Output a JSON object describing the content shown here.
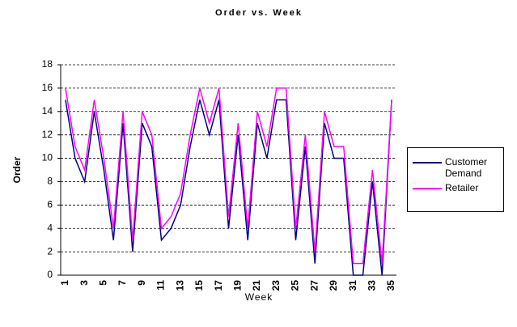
{
  "chart_data": {
    "type": "line",
    "title": "Order vs. Week",
    "xlabel": "Week",
    "ylabel": "Order",
    "categories": [
      "1",
      null,
      "3",
      null,
      "5",
      null,
      "7",
      null,
      "9",
      null,
      "11",
      null,
      "13",
      null,
      "15",
      null,
      "17",
      null,
      "19",
      null,
      "21",
      null,
      "23",
      null,
      "25",
      null,
      "27",
      null,
      "29",
      null,
      "31",
      null,
      "33",
      null,
      "35"
    ],
    "series": [
      {
        "name": "Customer Demand",
        "color": "#000080",
        "values": [
          15,
          10,
          8,
          14,
          9,
          3,
          13,
          2,
          13,
          11,
          3,
          4,
          6,
          11,
          15,
          12,
          15,
          4,
          12,
          3,
          13,
          10,
          15,
          15,
          3,
          11,
          1,
          13,
          10,
          10,
          0,
          0,
          8,
          0,
          15
        ]
      },
      {
        "name": "Retailer",
        "color": "#ff00ff",
        "values": [
          16,
          11,
          9,
          15,
          10,
          4,
          14,
          3,
          14,
          12,
          4,
          5,
          7,
          12,
          16,
          13,
          16,
          5,
          13,
          4,
          14,
          11,
          16,
          16,
          4,
          12,
          2,
          14,
          11,
          11,
          1,
          1,
          9,
          1,
          15
        ]
      }
    ],
    "ylim": [
      0,
      18
    ],
    "yticks": [
      0,
      2,
      4,
      6,
      8,
      10,
      12,
      14,
      16,
      18
    ],
    "grid": true,
    "legend": "right"
  }
}
